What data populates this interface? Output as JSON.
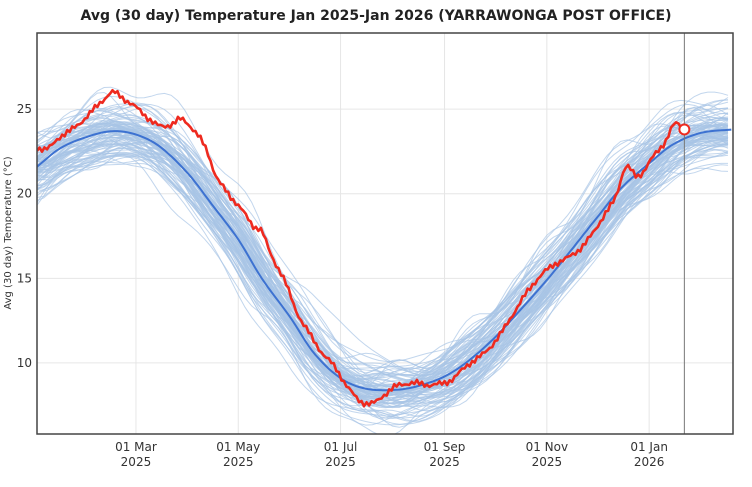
{
  "chart_data": {
    "type": "line",
    "title": "Avg (30 day) Temperature Jan 2025-Jan 2026 (YARRAWONGA POST OFFICE)",
    "ylabel": "Avg (30 day) Temperature (°C)",
    "xlabel": "",
    "ylim": [
      5.8,
      29.5
    ],
    "xlim": [
      "2025-01-01",
      "2026-02-20"
    ],
    "yticks": [
      10,
      15,
      20,
      25
    ],
    "xticks": [
      {
        "date": "2025-03-01",
        "line1": "01 Mar",
        "line2": "2025"
      },
      {
        "date": "2025-05-01",
        "line1": "01 May",
        "line2": "2025"
      },
      {
        "date": "2025-07-01",
        "line1": "01 Jul",
        "line2": "2025"
      },
      {
        "date": "2025-09-01",
        "line1": "01 Sep",
        "line2": "2025"
      },
      {
        "date": "2025-11-01",
        "line1": "01 Nov",
        "line2": "2025"
      },
      {
        "date": "2026-01-01",
        "line1": "01 Jan",
        "line2": "2026"
      }
    ],
    "grid": true,
    "current_date_marker": "2026-01-22",
    "series": [
      {
        "role": "historical years",
        "color": "#a8c4e6",
        "count": 100,
        "spread": 1.3
      },
      {
        "role": "historical mean",
        "color": "#3d72d1",
        "points": [
          [
            "2025-01-01",
            21.6
          ],
          [
            "2025-01-15",
            22.7
          ],
          [
            "2025-02-01",
            23.4
          ],
          [
            "2025-02-15",
            23.7
          ],
          [
            "2025-03-01",
            23.5
          ],
          [
            "2025-03-15",
            22.8
          ],
          [
            "2025-04-01",
            21.2
          ],
          [
            "2025-04-15",
            19.4
          ],
          [
            "2025-05-01",
            17.3
          ],
          [
            "2025-05-15",
            15.0
          ],
          [
            "2025-06-01",
            12.7
          ],
          [
            "2025-06-15",
            10.6
          ],
          [
            "2025-07-01",
            9.1
          ],
          [
            "2025-07-15",
            8.5
          ],
          [
            "2025-08-01",
            8.4
          ],
          [
            "2025-08-15",
            8.6
          ],
          [
            "2025-09-01",
            9.2
          ],
          [
            "2025-09-15",
            10.1
          ],
          [
            "2025-10-01",
            11.5
          ],
          [
            "2025-10-15",
            13.0
          ],
          [
            "2025-11-01",
            14.9
          ],
          [
            "2025-11-15",
            16.6
          ],
          [
            "2025-12-01",
            18.6
          ],
          [
            "2025-12-15",
            20.3
          ],
          [
            "2026-01-01",
            21.8
          ],
          [
            "2026-01-15",
            22.9
          ],
          [
            "2026-02-01",
            23.6
          ],
          [
            "2026-02-20",
            23.8
          ]
        ]
      },
      {
        "role": "current year",
        "color": "#ee2a1f",
        "points": [
          [
            "2025-01-01",
            22.7
          ],
          [
            "2025-01-08",
            22.7
          ],
          [
            "2025-01-15",
            23.4
          ],
          [
            "2025-01-22",
            23.8
          ],
          [
            "2025-01-29",
            24.4
          ],
          [
            "2025-02-05",
            25.1
          ],
          [
            "2025-02-10",
            25.6
          ],
          [
            "2025-02-15",
            26.0
          ],
          [
            "2025-02-22",
            25.6
          ],
          [
            "2025-03-01",
            25.1
          ],
          [
            "2025-03-08",
            24.5
          ],
          [
            "2025-03-15",
            24.0
          ],
          [
            "2025-03-22",
            24.1
          ],
          [
            "2025-03-28",
            24.4
          ],
          [
            "2025-04-05",
            23.7
          ],
          [
            "2025-04-12",
            22.6
          ],
          [
            "2025-04-18",
            21.0
          ],
          [
            "2025-04-25",
            20.0
          ],
          [
            "2025-05-02",
            19.2
          ],
          [
            "2025-05-10",
            18.1
          ],
          [
            "2025-05-15",
            17.8
          ],
          [
            "2025-05-20",
            16.5
          ],
          [
            "2025-05-28",
            15.0
          ],
          [
            "2025-06-05",
            13.0
          ],
          [
            "2025-06-12",
            11.8
          ],
          [
            "2025-06-20",
            10.6
          ],
          [
            "2025-06-28",
            9.7
          ],
          [
            "2025-07-05",
            8.6
          ],
          [
            "2025-07-12",
            7.8
          ],
          [
            "2025-07-20",
            7.6
          ],
          [
            "2025-07-28",
            8.2
          ],
          [
            "2025-08-05",
            8.7
          ],
          [
            "2025-08-15",
            8.8
          ],
          [
            "2025-08-25",
            8.7
          ],
          [
            "2025-09-05",
            9.0
          ],
          [
            "2025-09-15",
            9.9
          ],
          [
            "2025-09-25",
            10.6
          ],
          [
            "2025-10-05",
            11.8
          ],
          [
            "2025-10-15",
            13.4
          ],
          [
            "2025-10-25",
            14.8
          ],
          [
            "2025-11-05",
            15.8
          ],
          [
            "2025-11-15",
            16.3
          ],
          [
            "2025-11-25",
            17.2
          ],
          [
            "2025-12-05",
            18.7
          ],
          [
            "2025-12-12",
            19.8
          ],
          [
            "2025-12-18",
            21.6
          ],
          [
            "2025-12-25",
            21.0
          ],
          [
            "2026-01-02",
            22.0
          ],
          [
            "2026-01-10",
            23.0
          ],
          [
            "2026-01-16",
            24.1
          ],
          [
            "2026-01-22",
            23.8
          ]
        ]
      }
    ]
  }
}
